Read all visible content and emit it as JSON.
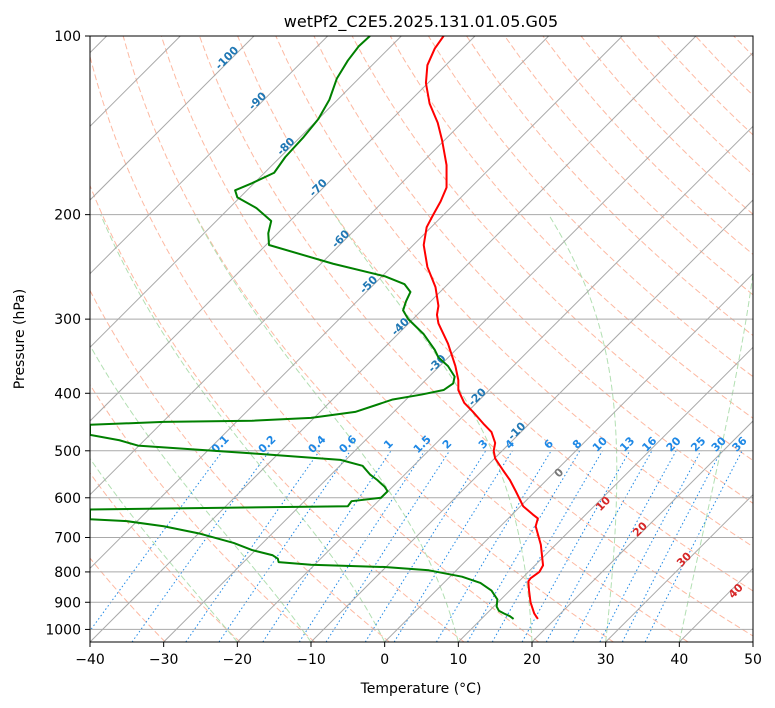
{
  "chart_data": {
    "type": "line",
    "title": "wetPf2_C2E5.2025.131.01.05.G05",
    "xlabel": "Temperature (°C)",
    "ylabel": "Pressure (hPa)",
    "xlim": [
      -40,
      50
    ],
    "ylim": [
      1050,
      100
    ],
    "y_scale": "log",
    "x_ticks": [
      -40,
      -30,
      -20,
      -10,
      0,
      10,
      20,
      30,
      40,
      50
    ],
    "y_ticks": [
      100,
      200,
      300,
      400,
      500,
      600,
      700,
      800,
      900,
      1000
    ],
    "grid": true,
    "series": [
      {
        "color": "#ff0000",
        "points": [
          {
            "t": 20.8,
            "p": 960
          },
          {
            "t": 20.3,
            "p": 940
          },
          {
            "t": 19.8,
            "p": 900
          },
          {
            "t": 19.6,
            "p": 860
          },
          {
            "t": 19.5,
            "p": 830
          },
          {
            "t": 19.8,
            "p": 820
          },
          {
            "t": 21.0,
            "p": 800
          },
          {
            "t": 21.5,
            "p": 780
          },
          {
            "t": 21.2,
            "p": 720
          },
          {
            "t": 20.5,
            "p": 670
          },
          {
            "t": 20.8,
            "p": 650
          },
          {
            "t": 20.1,
            "p": 640
          },
          {
            "t": 18.8,
            "p": 620
          },
          {
            "t": 17.8,
            "p": 585
          },
          {
            "t": 17.0,
            "p": 560
          },
          {
            "t": 16.1,
            "p": 540
          },
          {
            "t": 15.0,
            "p": 515
          },
          {
            "t": 14.8,
            "p": 500
          },
          {
            "t": 15.0,
            "p": 485
          },
          {
            "t": 14.5,
            "p": 465
          },
          {
            "t": 13.4,
            "p": 450
          },
          {
            "t": 12.0,
            "p": 430
          },
          {
            "t": 10.8,
            "p": 415
          },
          {
            "t": 10.0,
            "p": 395
          },
          {
            "t": 10.0,
            "p": 380
          },
          {
            "t": 9.6,
            "p": 360
          },
          {
            "t": 8.6,
            "p": 330
          },
          {
            "t": 7.3,
            "p": 305
          },
          {
            "t": 7.1,
            "p": 295
          },
          {
            "t": 7.3,
            "p": 285
          },
          {
            "t": 6.9,
            "p": 265
          },
          {
            "t": 5.8,
            "p": 245
          },
          {
            "t": 5.3,
            "p": 225
          },
          {
            "t": 5.7,
            "p": 210
          },
          {
            "t": 6.6,
            "p": 200
          },
          {
            "t": 7.6,
            "p": 190
          },
          {
            "t": 8.4,
            "p": 180
          },
          {
            "t": 8.4,
            "p": 165
          },
          {
            "t": 7.8,
            "p": 150
          },
          {
            "t": 7.2,
            "p": 140
          },
          {
            "t": 6.1,
            "p": 130
          },
          {
            "t": 5.6,
            "p": 120
          },
          {
            "t": 5.8,
            "p": 112
          },
          {
            "t": 6.8,
            "p": 105
          },
          {
            "t": 8.0,
            "p": 100
          }
        ]
      },
      {
        "color": "#008000",
        "points": [
          {
            "t": 17.5,
            "p": 960
          },
          {
            "t": 17.0,
            "p": 950
          },
          {
            "t": 16.2,
            "p": 940
          },
          {
            "t": 15.5,
            "p": 930
          },
          {
            "t": 15.2,
            "p": 915
          },
          {
            "t": 15.3,
            "p": 890
          },
          {
            "t": 14.5,
            "p": 860
          },
          {
            "t": 13.0,
            "p": 835
          },
          {
            "t": 10.5,
            "p": 815
          },
          {
            "t": 6.0,
            "p": 795
          },
          {
            "t": 0.0,
            "p": 785
          },
          {
            "t": -10.0,
            "p": 778
          },
          {
            "t": -14.4,
            "p": 770
          },
          {
            "t": -14.5,
            "p": 760
          },
          {
            "t": -15.2,
            "p": 750
          },
          {
            "t": -18.0,
            "p": 735
          },
          {
            "t": -20.5,
            "p": 715
          },
          {
            "t": -25.0,
            "p": 690
          },
          {
            "t": -30.0,
            "p": 670
          },
          {
            "t": -35.0,
            "p": 657
          },
          {
            "t": -40.0,
            "p": 652
          },
          {
            "t": -40.0,
            "p": 628
          },
          {
            "t": -5.0,
            "p": 620
          },
          {
            "t": -4.5,
            "p": 608
          },
          {
            "t": -0.5,
            "p": 600
          },
          {
            "t": 0.4,
            "p": 585
          },
          {
            "t": 0.0,
            "p": 575
          },
          {
            "t": -1.0,
            "p": 560
          },
          {
            "t": -2.0,
            "p": 548
          },
          {
            "t": -3.0,
            "p": 530
          },
          {
            "t": -6.0,
            "p": 518
          },
          {
            "t": -18.0,
            "p": 505
          },
          {
            "t": -33.5,
            "p": 490
          },
          {
            "t": -36.0,
            "p": 480
          },
          {
            "t": -40.0,
            "p": 470
          },
          {
            "t": -40.0,
            "p": 452
          },
          {
            "t": -30.0,
            "p": 447
          },
          {
            "t": -18.0,
            "p": 445
          },
          {
            "t": -10.0,
            "p": 440
          },
          {
            "t": -4.0,
            "p": 430
          },
          {
            "t": -1.0,
            "p": 418
          },
          {
            "t": 1.0,
            "p": 410
          },
          {
            "t": 5.0,
            "p": 402
          },
          {
            "t": 8.0,
            "p": 395
          },
          {
            "t": 9.3,
            "p": 385
          },
          {
            "t": 9.5,
            "p": 375
          },
          {
            "t": 8.6,
            "p": 360
          },
          {
            "t": 7.3,
            "p": 348
          },
          {
            "t": 6.8,
            "p": 338
          },
          {
            "t": 5.3,
            "p": 318
          },
          {
            "t": 3.2,
            "p": 300
          },
          {
            "t": 2.5,
            "p": 290
          },
          {
            "t": 2.9,
            "p": 280
          },
          {
            "t": 3.5,
            "p": 270
          },
          {
            "t": 2.7,
            "p": 262
          },
          {
            "t": 0.0,
            "p": 254
          },
          {
            "t": -7.0,
            "p": 242
          },
          {
            "t": -15.7,
            "p": 225
          },
          {
            "t": -15.8,
            "p": 215
          },
          {
            "t": -15.4,
            "p": 205
          },
          {
            "t": -17.4,
            "p": 195
          },
          {
            "t": -20.0,
            "p": 187
          },
          {
            "t": -20.3,
            "p": 182
          },
          {
            "t": -18.0,
            "p": 177
          },
          {
            "t": -15.0,
            "p": 170
          },
          {
            "t": -13.5,
            "p": 160
          },
          {
            "t": -11.0,
            "p": 148
          },
          {
            "t": -9.0,
            "p": 138
          },
          {
            "t": -7.5,
            "p": 128
          },
          {
            "t": -6.5,
            "p": 118
          },
          {
            "t": -5.0,
            "p": 110
          },
          {
            "t": -3.5,
            "p": 104
          },
          {
            "t": -2.0,
            "p": 100
          }
        ]
      }
    ],
    "dry_adiabat_labels": [
      "-100",
      "-90",
      "-80",
      "-70",
      "-60",
      "-50",
      "-40",
      "-30",
      "-20",
      "-10"
    ],
    "mixing_ratio_labels": [
      "0.1",
      "0.2",
      "0.4",
      "0.6",
      "1",
      "1.5",
      "2",
      "3",
      "4",
      "6",
      "8",
      "10",
      "13",
      "16",
      "20",
      "25",
      "30",
      "36"
    ],
    "moist_adiabat_labels": [
      "0",
      "10",
      "20",
      "30",
      "40"
    ],
    "colors": {
      "temperature": "#ff0000",
      "dewpoint": "#008000",
      "isotherm": "#a9a9a9",
      "dry_adiabat": "#fdb9a2",
      "moist_adiabat": "#b2dfb2",
      "mixing_ratio": "#1e88e5",
      "dry_label": "#1f77b4",
      "moist_label": "#d62728"
    }
  }
}
